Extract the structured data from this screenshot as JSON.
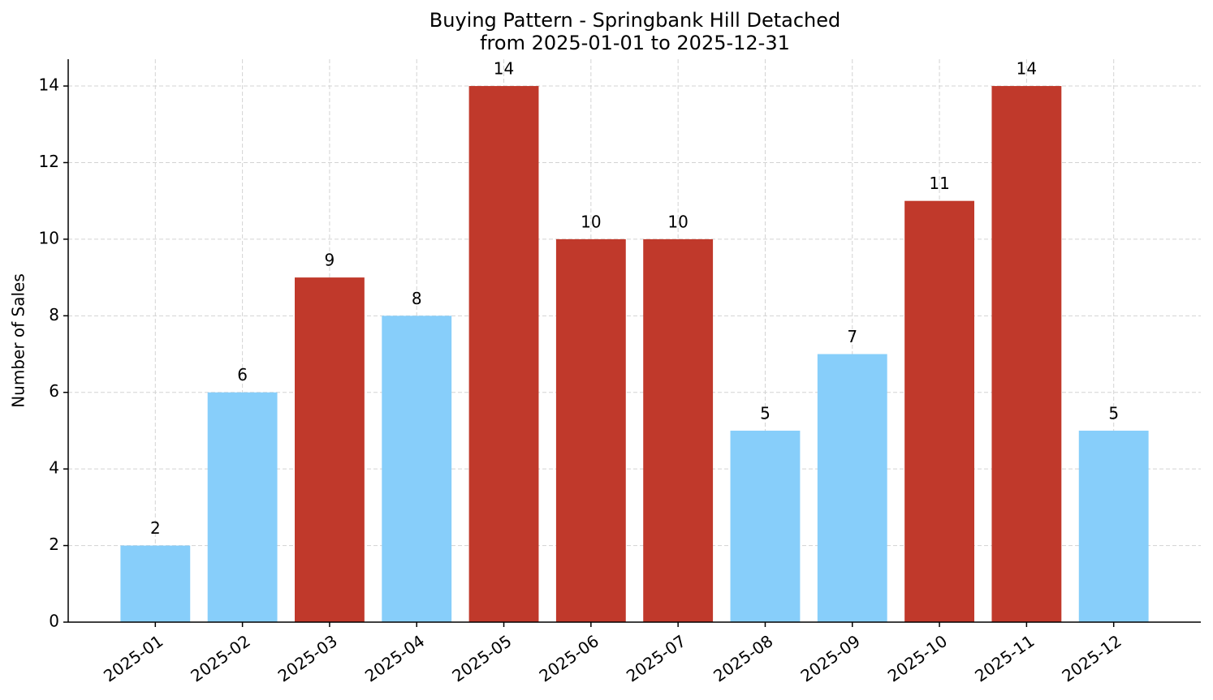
{
  "chart_data": {
    "type": "bar",
    "title": "Buying Pattern - Springbank Hill Detached",
    "subtitle": "from 2025-01-01 to 2025-12-31",
    "y_label": "Number of Sales",
    "categories": [
      "2025-01",
      "2025-02",
      "2025-03",
      "2025-04",
      "2025-05",
      "2025-06",
      "2025-07",
      "2025-08",
      "2025-09",
      "2025-10",
      "2025-11",
      "2025-12"
    ],
    "values": [
      2,
      6,
      9,
      8,
      14,
      10,
      10,
      5,
      7,
      11,
      14,
      5
    ],
    "colors": [
      "#87cefa",
      "#87cefa",
      "#c0392b",
      "#87cefa",
      "#c0392b",
      "#c0392b",
      "#c0392b",
      "#87cefa",
      "#87cefa",
      "#c0392b",
      "#c0392b",
      "#87cefa"
    ],
    "ylim": [
      0,
      14.7
    ],
    "yticks": [
      0,
      2,
      4,
      6,
      8,
      10,
      12,
      14
    ],
    "grid": true
  }
}
